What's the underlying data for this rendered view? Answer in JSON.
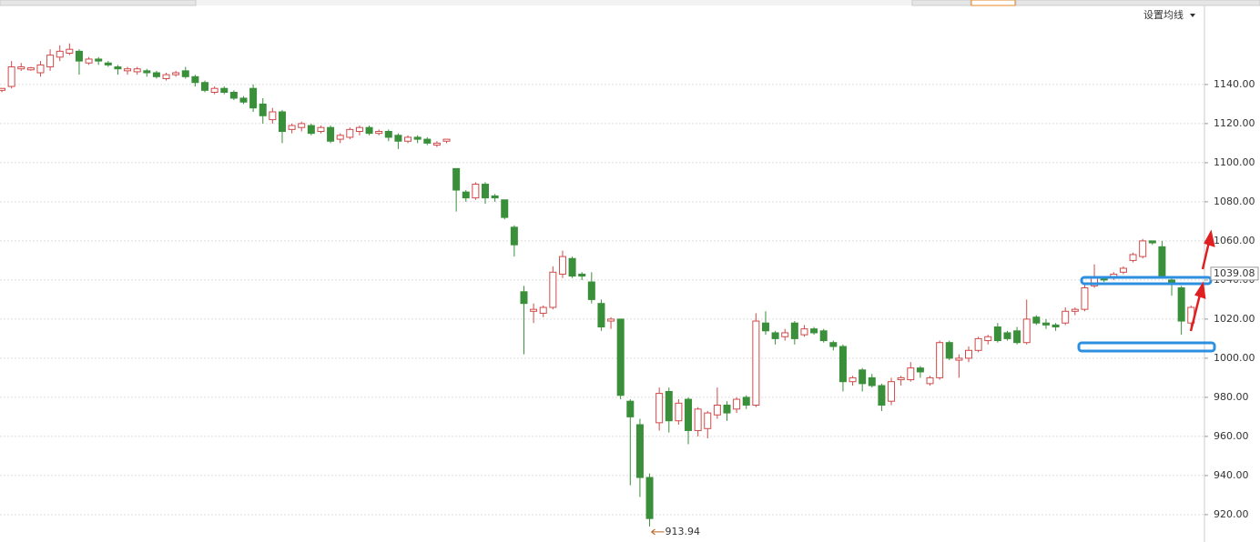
{
  "chart_data": {
    "type": "candlestick",
    "button": "设置均线",
    "price_marker": 1039.08,
    "up_color": "#d04a4a",
    "down_color": "#3a8f3a",
    "grid": true,
    "ylim": [
      906,
      1170
    ],
    "yticks": [
      {
        "value": 920,
        "label": "920.00"
      },
      {
        "value": 940,
        "label": "940.00"
      },
      {
        "value": 960,
        "label": "960.00"
      },
      {
        "value": 980,
        "label": "980.00"
      },
      {
        "value": 1000,
        "label": "1000.00"
      },
      {
        "value": 1020,
        "label": "1020.00"
      },
      {
        "value": 1040,
        "label": "1040.00"
      },
      {
        "value": 1060,
        "label": "1060.00"
      },
      {
        "value": 1080,
        "label": "1080.00"
      },
      {
        "value": 1100,
        "label": "1100.00"
      },
      {
        "value": 1120,
        "label": "1120.00"
      },
      {
        "value": 1140,
        "label": "1140.00"
      }
    ],
    "open": [
      1137,
      1139,
      1148,
      1147.5,
      1146,
      1149,
      1154,
      1156,
      1157,
      1151,
      1153,
      1151,
      1149,
      1147,
      1146.5,
      1147,
      1146,
      1143,
      1145,
      1147,
      1144,
      1141,
      1136,
      1138,
      1136,
      1133,
      1138,
      1130,
      1122,
      1126,
      1117,
      1118,
      1119,
      1116,
      1118,
      1112,
      1113,
      1116,
      1118,
      1115,
      1116,
      1114,
      1111,
      1113,
      1112,
      1109,
      1111,
      1097,
      1085,
      1082,
      1089,
      1083,
      1081,
      1067,
      1034,
      1024,
      1023,
      1026,
      1043,
      1051,
      1043,
      1039,
      1028,
      1019,
      1020,
      978,
      966,
      939,
      967,
      983,
      968,
      979,
      963,
      964,
      971,
      976,
      974,
      980,
      976,
      1018,
      1013,
      1011,
      1018,
      1012,
      1015,
      1014,
      1008,
      1006,
      988,
      994,
      990,
      986,
      978,
      989,
      989,
      995,
      987,
      990,
      1008,
      999,
      1000,
      1004,
      1009,
      1016,
      1013,
      1014,
      1008,
      1021,
      1018,
      1017,
      1018,
      1024,
      1025,
      1037,
      1041,
      1041,
      1044,
      1050,
      1052,
      1060,
      1057,
      1040,
      1036,
      1018
    ],
    "high": [
      1138,
      1152,
      1151,
      1149,
      1152,
      1158,
      1160,
      1161,
      1158,
      1154,
      1154,
      1152,
      1150,
      1149,
      1149,
      1148,
      1147,
      1146,
      1147,
      1149,
      1145,
      1142,
      1139,
      1139,
      1137,
      1134,
      1140,
      1133,
      1128,
      1127,
      1120,
      1121,
      1120,
      1119,
      1119,
      1115,
      1118,
      1119,
      1119,
      1117,
      1117,
      1115,
      1114,
      1114,
      1113,
      1111,
      1112,
      1097,
      1086,
      1090,
      1090,
      1084,
      1081,
      1068,
      1037,
      1028,
      1027,
      1047,
      1055,
      1052,
      1044,
      1044,
      1030,
      1021,
      1020,
      979,
      969,
      941,
      985,
      985,
      979,
      980,
      975,
      973,
      985,
      978,
      980,
      981,
      1023,
      1024,
      1014,
      1015,
      1019,
      1017,
      1016,
      1015,
      1009,
      1007,
      991,
      995,
      992,
      987,
      990,
      991,
      998,
      996,
      991,
      1009,
      1009,
      1002,
      1006,
      1011,
      1012,
      1018,
      1014,
      1016,
      1030,
      1022,
      1020,
      1018,
      1026,
      1026,
      1038,
      1048,
      1042,
      1044,
      1047,
      1054,
      1061,
      1060,
      1060,
      1042,
      1037,
      1027
    ],
    "low": [
      1136,
      1138,
      1147,
      1147,
      1144,
      1147,
      1152,
      1155,
      1145,
      1150,
      1150,
      1149,
      1145,
      1145,
      1145,
      1144,
      1143,
      1142,
      1144,
      1143,
      1139,
      1136,
      1135,
      1135,
      1132,
      1130,
      1126,
      1120,
      1120,
      1110,
      1115,
      1116,
      1114,
      1115,
      1110,
      1110,
      1112,
      1114,
      1114,
      1114,
      1111,
      1107,
      1110,
      1110,
      1109,
      1108,
      1110,
      1075,
      1080,
      1081,
      1079,
      1080,
      1071,
      1052,
      1002,
      1018,
      1021,
      1025,
      1041,
      1041,
      1040,
      1028,
      1014,
      1015,
      979,
      935,
      929,
      913.94,
      963,
      962,
      966,
      956,
      960,
      959,
      969,
      968,
      972,
      974,
      975,
      1012,
      1007,
      1009,
      1007,
      1011,
      1012,
      1008,
      1004,
      983,
      986,
      983,
      985,
      973,
      976,
      986,
      988,
      990,
      986,
      989,
      999,
      990,
      998,
      1003,
      1007,
      1008,
      1009,
      1007,
      1007,
      1017,
      1015,
      1014,
      1017,
      1022,
      1024,
      1036,
      1039,
      1040,
      1043,
      1049,
      1051,
      1058,
      1041,
      1032,
      1012,
      1015
    ],
    "close": [
      1138,
      1149,
      1149,
      1148.5,
      1150,
      1155,
      1157,
      1158,
      1152,
      1153,
      1152,
      1150,
      1148,
      1148,
      1148,
      1146,
      1144,
      1145,
      1146,
      1144,
      1141,
      1137,
      1138,
      1136,
      1133,
      1131,
      1128,
      1124,
      1126,
      1116,
      1119,
      1120,
      1115,
      1118,
      1111,
      1114,
      1117,
      1118,
      1115,
      1116,
      1113,
      1111,
      1113,
      1112,
      1110,
      1110,
      1112,
      1086,
      1082,
      1089,
      1082,
      1082,
      1072,
      1058,
      1028,
      1025,
      1026,
      1044,
      1052,
      1042,
      1042,
      1030,
      1016,
      1020,
      981,
      970,
      939,
      918,
      982,
      968,
      977,
      963,
      974,
      972,
      976,
      972,
      979,
      976,
      1019,
      1014,
      1010,
      1013,
      1010,
      1015,
      1013,
      1009,
      1006,
      988,
      990,
      987,
      986,
      976,
      988,
      990,
      995,
      993,
      990,
      1008,
      1000,
      1000,
      1004,
      1010,
      1011,
      1009,
      1010,
      1008,
      1020,
      1018,
      1017,
      1016,
      1024,
      1025,
      1036,
      1041,
      1040,
      1043,
      1046,
      1053,
      1060,
      1059,
      1042,
      1038,
      1019,
      1026
    ]
  }
}
